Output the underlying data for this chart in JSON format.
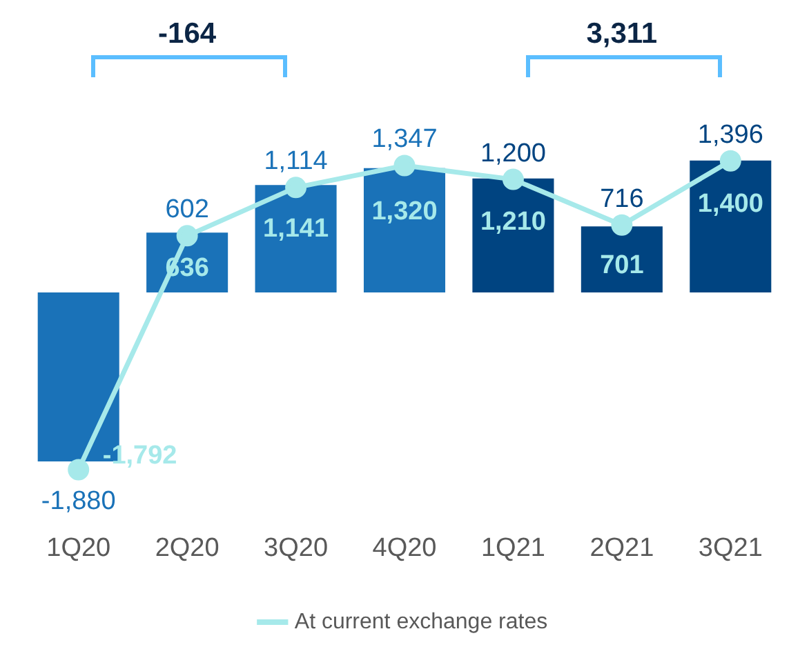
{
  "chart_data": {
    "type": "bar",
    "categories": [
      "1Q20",
      "2Q20",
      "3Q20",
      "4Q20",
      "1Q21",
      "2Q21",
      "3Q21"
    ],
    "series": [
      {
        "colors": [
          "#1a72b8",
          "#1a72b8",
          "#1a72b8",
          "#1a72b8",
          "#004481",
          "#004481",
          "#004481"
        ],
        "values": [
          -1792,
          636,
          1141,
          1320,
          1210,
          701,
          1400
        ],
        "value_labels": [
          "-1,792",
          "636",
          "1,141",
          "1,320",
          "1,210",
          "701",
          "1,400"
        ]
      },
      {
        "type": "line",
        "name": "At current exchange rates",
        "color": "#a6e9ea",
        "values": [
          -1880,
          602,
          1114,
          1347,
          1200,
          716,
          1396
        ],
        "value_labels": [
          "-1,880",
          "602",
          "1,114",
          "1,347",
          "1,200",
          "716",
          "1,396"
        ]
      }
    ],
    "annotations": [
      "-164",
      "3,311"
    ],
    "legend": "bottom",
    "grid": false,
    "marker": "circle",
    "line_style": "solid"
  }
}
